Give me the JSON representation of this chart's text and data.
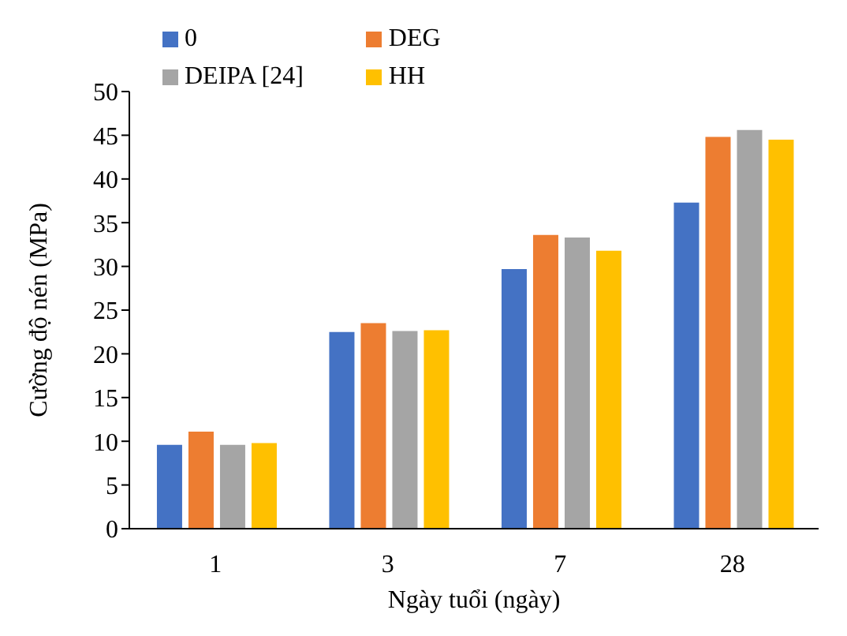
{
  "chart_data": {
    "type": "bar",
    "xlabel": "Ngày tuổi (ngày)",
    "ylabel": "Cường độ nén (MPa)",
    "categories": [
      "1",
      "3",
      "7",
      "28"
    ],
    "series": [
      {
        "name": "0",
        "color": "#4472c4",
        "values": [
          9.6,
          22.5,
          29.7,
          37.3
        ]
      },
      {
        "name": "DEG",
        "color": "#ed7d31",
        "values": [
          11.1,
          23.5,
          33.6,
          44.8
        ]
      },
      {
        "name": "DEIPA [24]",
        "color": "#a5a5a5",
        "values": [
          9.6,
          22.6,
          33.3,
          45.6
        ]
      },
      {
        "name": "HH",
        "color": "#ffc000",
        "values": [
          9.8,
          22.7,
          31.8,
          44.5
        ]
      }
    ],
    "ylim": [
      0,
      50
    ],
    "yticks": [
      0,
      5,
      10,
      15,
      20,
      25,
      30,
      35,
      40,
      45,
      50
    ],
    "grid": false,
    "legend": "top"
  }
}
